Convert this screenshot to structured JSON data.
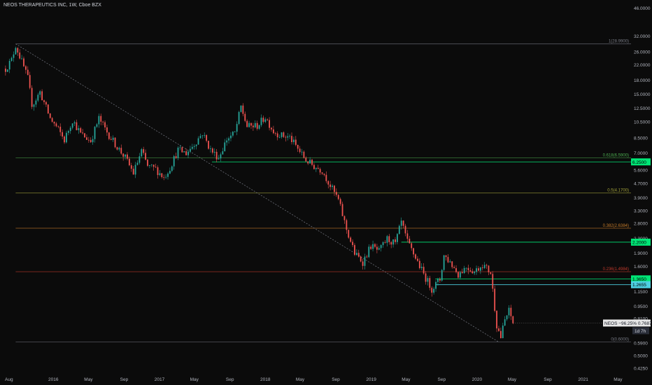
{
  "header": {
    "title": "NEOS THERAPEUTICS INC, 1W, Cboe BZX"
  },
  "colors": {
    "background": "#0b0b0b",
    "up": "#26a69a",
    "down": "#ef5350",
    "fib_1": "#787b86",
    "fib_0618": "#4caf50",
    "fib_05": "#a3a33a",
    "fib_0382": "#c77c2a",
    "fib_0236": "#c0392b",
    "fib_0": "#787b86",
    "level_green": "#00e676",
    "level_cyan": "#4dd0e1",
    "diagonal": "#787b86",
    "price_tag_bg": "#e6e6e6",
    "price_tag_text": "#131722"
  },
  "chart_data": {
    "type": "candlestick",
    "title": "NEOS THERAPEUTICS INC, 1W, Cboe BZX",
    "symbol": "NEOS",
    "scale": "log",
    "ylim": [
      0.39,
      46.0
    ],
    "y_ticks": [
      "46.0000",
      "32.0000",
      "26.0000",
      "22.0000",
      "18.0000",
      "15.0000",
      "12.5000",
      "10.5000",
      "8.5000",
      "7.0000",
      "5.6000",
      "4.7000",
      "3.9000",
      "3.3000",
      "2.8000",
      "2.3000",
      "1.9000",
      "1.6000",
      "1.3500",
      "1.1500",
      "0.9500",
      "0.8100",
      "0.6900",
      "0.5900",
      "0.5000",
      "0.4250"
    ],
    "x_ticks": [
      "Aug",
      "2016",
      "May",
      "Sep",
      "2017",
      "May",
      "Sep",
      "2018",
      "May",
      "Sep",
      "2019",
      "May",
      "Sep",
      "2020",
      "May",
      "Sep",
      "2021",
      "May"
    ],
    "xlim": [
      "2015-07-01",
      "2021-06-15"
    ],
    "price_path": [
      [
        "2015-07-20",
        21.0
      ],
      [
        "2015-08-10",
        23.5
      ],
      [
        "2015-08-24",
        28.5
      ],
      [
        "2015-09-14",
        23.0
      ],
      [
        "2015-10-05",
        18.5
      ],
      [
        "2015-10-20",
        13.0
      ],
      [
        "2015-11-16",
        15.5
      ],
      [
        "2015-12-21",
        11.0
      ],
      [
        "2016-01-18",
        9.5
      ],
      [
        "2016-02-08",
        8.3
      ],
      [
        "2016-03-07",
        10.8
      ],
      [
        "2016-04-04",
        9.0
      ],
      [
        "2016-05-09",
        8.2
      ],
      [
        "2016-06-06",
        11.0
      ],
      [
        "2016-07-04",
        9.2
      ],
      [
        "2016-08-08",
        7.6
      ],
      [
        "2016-09-05",
        6.6
      ],
      [
        "2016-10-03",
        5.4
      ],
      [
        "2016-10-31",
        7.2
      ],
      [
        "2016-11-21",
        5.9
      ],
      [
        "2016-12-19",
        5.7
      ],
      [
        "2017-01-16",
        5.1
      ],
      [
        "2017-02-06",
        5.8
      ],
      [
        "2017-03-06",
        7.3
      ],
      [
        "2017-04-03",
        7.0
      ],
      [
        "2017-05-01",
        7.9
      ],
      [
        "2017-05-29",
        9.1
      ],
      [
        "2017-06-26",
        7.3
      ],
      [
        "2017-07-24",
        6.6
      ],
      [
        "2017-08-21",
        8.4
      ],
      [
        "2017-09-18",
        9.1
      ],
      [
        "2017-10-09",
        12.8
      ],
      [
        "2017-10-30",
        9.9
      ],
      [
        "2017-12-04",
        10.0
      ],
      [
        "2018-01-01",
        11.2
      ],
      [
        "2018-01-29",
        9.3
      ],
      [
        "2018-02-26",
        8.8
      ],
      [
        "2018-03-26",
        8.6
      ],
      [
        "2018-04-23",
        7.4
      ],
      [
        "2018-05-21",
        6.4
      ],
      [
        "2018-06-18",
        5.9
      ],
      [
        "2018-07-16",
        5.6
      ],
      [
        "2018-08-13",
        4.6
      ],
      [
        "2018-09-10",
        3.8
      ],
      [
        "2018-10-08",
        2.6
      ],
      [
        "2018-11-05",
        1.9
      ],
      [
        "2018-12-03",
        1.7
      ],
      [
        "2018-12-31",
        2.1
      ],
      [
        "2019-01-28",
        1.95
      ],
      [
        "2019-02-25",
        2.3
      ],
      [
        "2019-03-25",
        2.15
      ],
      [
        "2019-04-15",
        2.85
      ],
      [
        "2019-05-06",
        2.2
      ],
      [
        "2019-06-03",
        1.8
      ],
      [
        "2019-07-01",
        1.45
      ],
      [
        "2019-07-29",
        1.2
      ],
      [
        "2019-08-26",
        1.35
      ],
      [
        "2019-09-09",
        1.85
      ],
      [
        "2019-09-30",
        1.7
      ],
      [
        "2019-10-28",
        1.45
      ],
      [
        "2019-11-25",
        1.6
      ],
      [
        "2019-12-23",
        1.5
      ],
      [
        "2020-01-20",
        1.65
      ],
      [
        "2020-02-17",
        1.48
      ],
      [
        "2020-03-09",
        0.75
      ],
      [
        "2020-03-23",
        0.64
      ],
      [
        "2020-04-06",
        0.8
      ],
      [
        "2020-04-20",
        0.9
      ],
      [
        "2020-05-04",
        0.77
      ]
    ],
    "fibonacci": [
      {
        "label": "1(28.9900)",
        "value": 28.99
      },
      {
        "label": "0.618(6.5900)",
        "value": 6.59
      },
      {
        "label": "0.5(4.1700)",
        "value": 4.17
      },
      {
        "label": "0.382(2.6384)",
        "value": 2.6384
      },
      {
        "label": "0.236(1.4984)",
        "value": 1.4984
      },
      {
        "label": "0(0.6000)",
        "value": 0.6
      }
    ],
    "levels": [
      {
        "label": "6.2500",
        "value": 6.25,
        "color": "green"
      },
      {
        "label": "2.2000",
        "value": 2.2,
        "color": "green"
      },
      {
        "label": "1.3650",
        "value": 1.365,
        "color": "green"
      },
      {
        "label": "1.2655",
        "value": 1.2655,
        "color": "cyan"
      }
    ],
    "diagonal": [
      [
        "2015-08-24",
        28.99
      ],
      [
        "2020-03-16",
        0.6
      ]
    ],
    "last_price_tag": {
      "text": "NEOS −96.25%  0.7687",
      "value": 0.7687,
      "countdown": "1d 7h"
    }
  }
}
